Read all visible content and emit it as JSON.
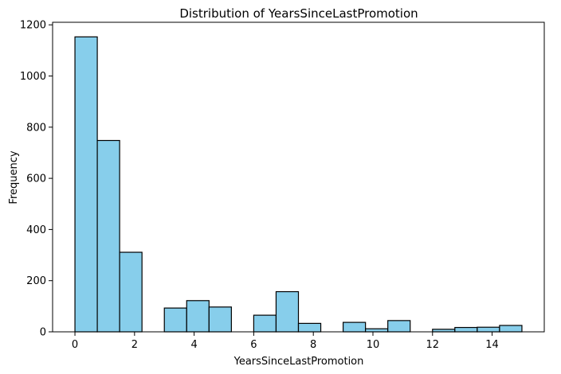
{
  "chart_data": {
    "type": "bar",
    "title": "Distribution of YearsSinceLastPromotion",
    "xlabel": "YearsSinceLastPromotion",
    "ylabel": "Frequency",
    "xlim": [
      -0.75,
      15.75
    ],
    "ylim": [
      0,
      1210
    ],
    "xticks": [
      0,
      2,
      4,
      6,
      8,
      10,
      12,
      14
    ],
    "yticks": [
      0,
      200,
      400,
      600,
      800,
      1000,
      1200
    ],
    "bin_width": 0.75,
    "bins": [
      {
        "start": 0.0,
        "value": 1153
      },
      {
        "start": 0.75,
        "value": 748
      },
      {
        "start": 1.5,
        "value": 311
      },
      {
        "start": 2.25,
        "value": 0
      },
      {
        "start": 3.0,
        "value": 93
      },
      {
        "start": 3.75,
        "value": 122
      },
      {
        "start": 4.5,
        "value": 97
      },
      {
        "start": 5.25,
        "value": 0
      },
      {
        "start": 6.0,
        "value": 65
      },
      {
        "start": 6.75,
        "value": 157
      },
      {
        "start": 7.5,
        "value": 33
      },
      {
        "start": 8.25,
        "value": 0
      },
      {
        "start": 9.0,
        "value": 37
      },
      {
        "start": 9.75,
        "value": 12
      },
      {
        "start": 10.5,
        "value": 44
      },
      {
        "start": 11.25,
        "value": 0
      },
      {
        "start": 12.0,
        "value": 10
      },
      {
        "start": 12.75,
        "value": 17
      },
      {
        "start": 13.5,
        "value": 18
      },
      {
        "start": 14.25,
        "value": 25
      }
    ],
    "bar_color": "#87CEEB",
    "edge_color": "#000000",
    "grid": false,
    "legend": "none"
  }
}
